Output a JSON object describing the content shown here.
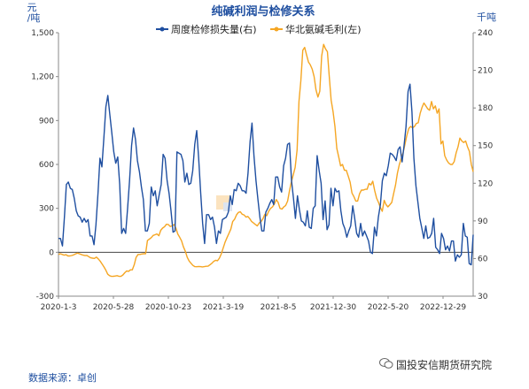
{
  "chart_data": {
    "type": "line",
    "title": "纯碱利润与检修关系",
    "left_unit": [
      "元",
      "/吨"
    ],
    "right_unit": "千吨",
    "x_ticks": [
      "2020-1-3",
      "2020-5-28",
      "2020-10-23",
      "2021-3-19",
      "2021-8-5",
      "2021-12-30",
      "2022-5-20",
      "2022-12-29"
    ],
    "left_axis": {
      "ticks": [
        "1,500",
        "1,200",
        "900",
        "600",
        "300",
        "0",
        "-300"
      ],
      "range": [
        -300,
        1500
      ]
    },
    "right_axis": {
      "ticks": [
        "240",
        "210",
        "180",
        "150",
        "120",
        "90",
        "60",
        "30"
      ],
      "range": [
        30,
        240
      ]
    },
    "legend_position": "top",
    "series": [
      {
        "name": "周度检修损失量(右)",
        "axis": "right",
        "color": "#1f4fa0",
        "values": [
          76,
          76,
          70,
          93,
          119,
          121,
          116,
          115,
          108,
          98,
          94,
          93,
          89,
          92,
          89,
          91,
          78,
          78,
          71,
          87,
          112,
          140,
          133,
          157,
          181,
          190,
          175,
          160,
          145,
          136,
          141,
          119,
          80,
          84,
          80,
          100,
          122,
          150,
          164,
          155,
          138,
          129,
          117,
          107,
          82,
          82,
          88,
          117,
          110,
          114,
          102,
          111,
          119,
          143,
          140,
          122,
          112,
          98,
          81,
          82,
          145,
          144,
          143,
          138,
          121,
          128,
          119,
          120,
          130,
          151,
          162,
          140,
          112,
          88,
          72,
          95,
          95,
          91,
          93,
          85,
          72,
          82,
          80,
          91,
          92,
          93,
          97,
          110,
          103,
          115,
          114,
          120,
          118,
          114,
          114,
          112,
          128,
          153,
          168,
          142,
          122,
          107,
          93,
          82,
          82,
          97,
          100,
          104,
          107,
          103,
          125,
          125,
          117,
          113,
          134,
          140,
          151,
          152,
          122,
          108,
          92,
          110,
          99,
          90,
          89,
          86,
          98,
          85,
          84,
          100,
          102,
          142,
          130,
          120,
          91,
          106,
          83,
          87,
          116,
          102,
          116,
          113,
          114,
          98,
          88,
          84,
          77,
          82,
          86,
          102,
          92,
          80,
          77,
          88,
          78,
          82,
          78,
          74,
          65,
          64,
          85,
          78,
          93,
          103,
          122,
          128,
          126,
          134,
          144,
          143,
          141,
          138,
          147,
          149,
          137,
          150,
          165,
          193,
          199,
          177,
          140,
          118,
          105,
          92,
          84,
          76,
          86,
          76,
          77,
          80,
          92,
          69,
          67,
          64,
          80,
          76,
          67,
          70,
          66,
          74,
          74,
          58,
          63,
          61,
          63,
          88,
          78,
          77,
          56,
          55,
          79
        ]
      },
      {
        "name": "华北氨碱毛利(左)",
        "axis": "left",
        "color": "#f5a623",
        "values": [
          -15,
          -10,
          -15,
          -20,
          -17,
          -25,
          -25,
          -22,
          -18,
          -12,
          -6,
          -10,
          -15,
          -20,
          -23,
          -22,
          -30,
          -38,
          -40,
          -42,
          -33,
          -45,
          -60,
          -80,
          -100,
          -122,
          -150,
          -160,
          -165,
          -164,
          -162,
          -160,
          -165,
          -165,
          -155,
          -140,
          -128,
          -130,
          -120,
          -120,
          -85,
          -35,
          -15,
          -15,
          -12,
          -10,
          -10,
          80,
          90,
          100,
          115,
          120,
          125,
          113,
          150,
          165,
          175,
          191,
          190,
          176,
          180,
          190,
          165,
          125,
          102,
          78,
          37,
          6,
          -35,
          -60,
          -75,
          -90,
          -98,
          -99,
          -97,
          -98,
          -100,
          -98,
          -96,
          -95,
          -85,
          -75,
          -62,
          -55,
          -58,
          -40,
          -10,
          30,
          70,
          100,
          128,
          158,
          210,
          225,
          255,
          272,
          277,
          260,
          255,
          240,
          245,
          230,
          210,
          200,
          190,
          180,
          200,
          210,
          230,
          260,
          250,
          280,
          300,
          310,
          330,
          360,
          340,
          300,
          295,
          310,
          320,
          350,
          420,
          480,
          530,
          580,
          700,
          1030,
          1170,
          1380,
          1400,
          1350,
          1300,
          1280,
          1250,
          1200,
          1110,
          1060,
          1100,
          1340,
          1420,
          1390,
          1370,
          1200,
          1040,
          960,
          860,
          710,
          650,
          590,
          600,
          560,
          560,
          520,
          480,
          405,
          380,
          350,
          350,
          400,
          425,
          425,
          430,
          430,
          470,
          460,
          485,
          420,
          370,
          340,
          305,
          280,
          355,
          325,
          310,
          325,
          340,
          400,
          460,
          540,
          600,
          640,
          680,
          740,
          800,
          845,
          860,
          850,
          860,
          880,
          885,
          950,
          990,
          1020,
          1000,
          980,
          970,
          1030,
          980,
          1000,
          950,
          980,
          740,
          760,
          660,
          630,
          610,
          600,
          600,
          620,
          680,
          720,
          780,
          760,
          750,
          760,
          720,
          690,
          600,
          550
        ]
      }
    ]
  },
  "source": "数据来源：卓创",
  "watermark_brand": "国投安信期货研究院"
}
